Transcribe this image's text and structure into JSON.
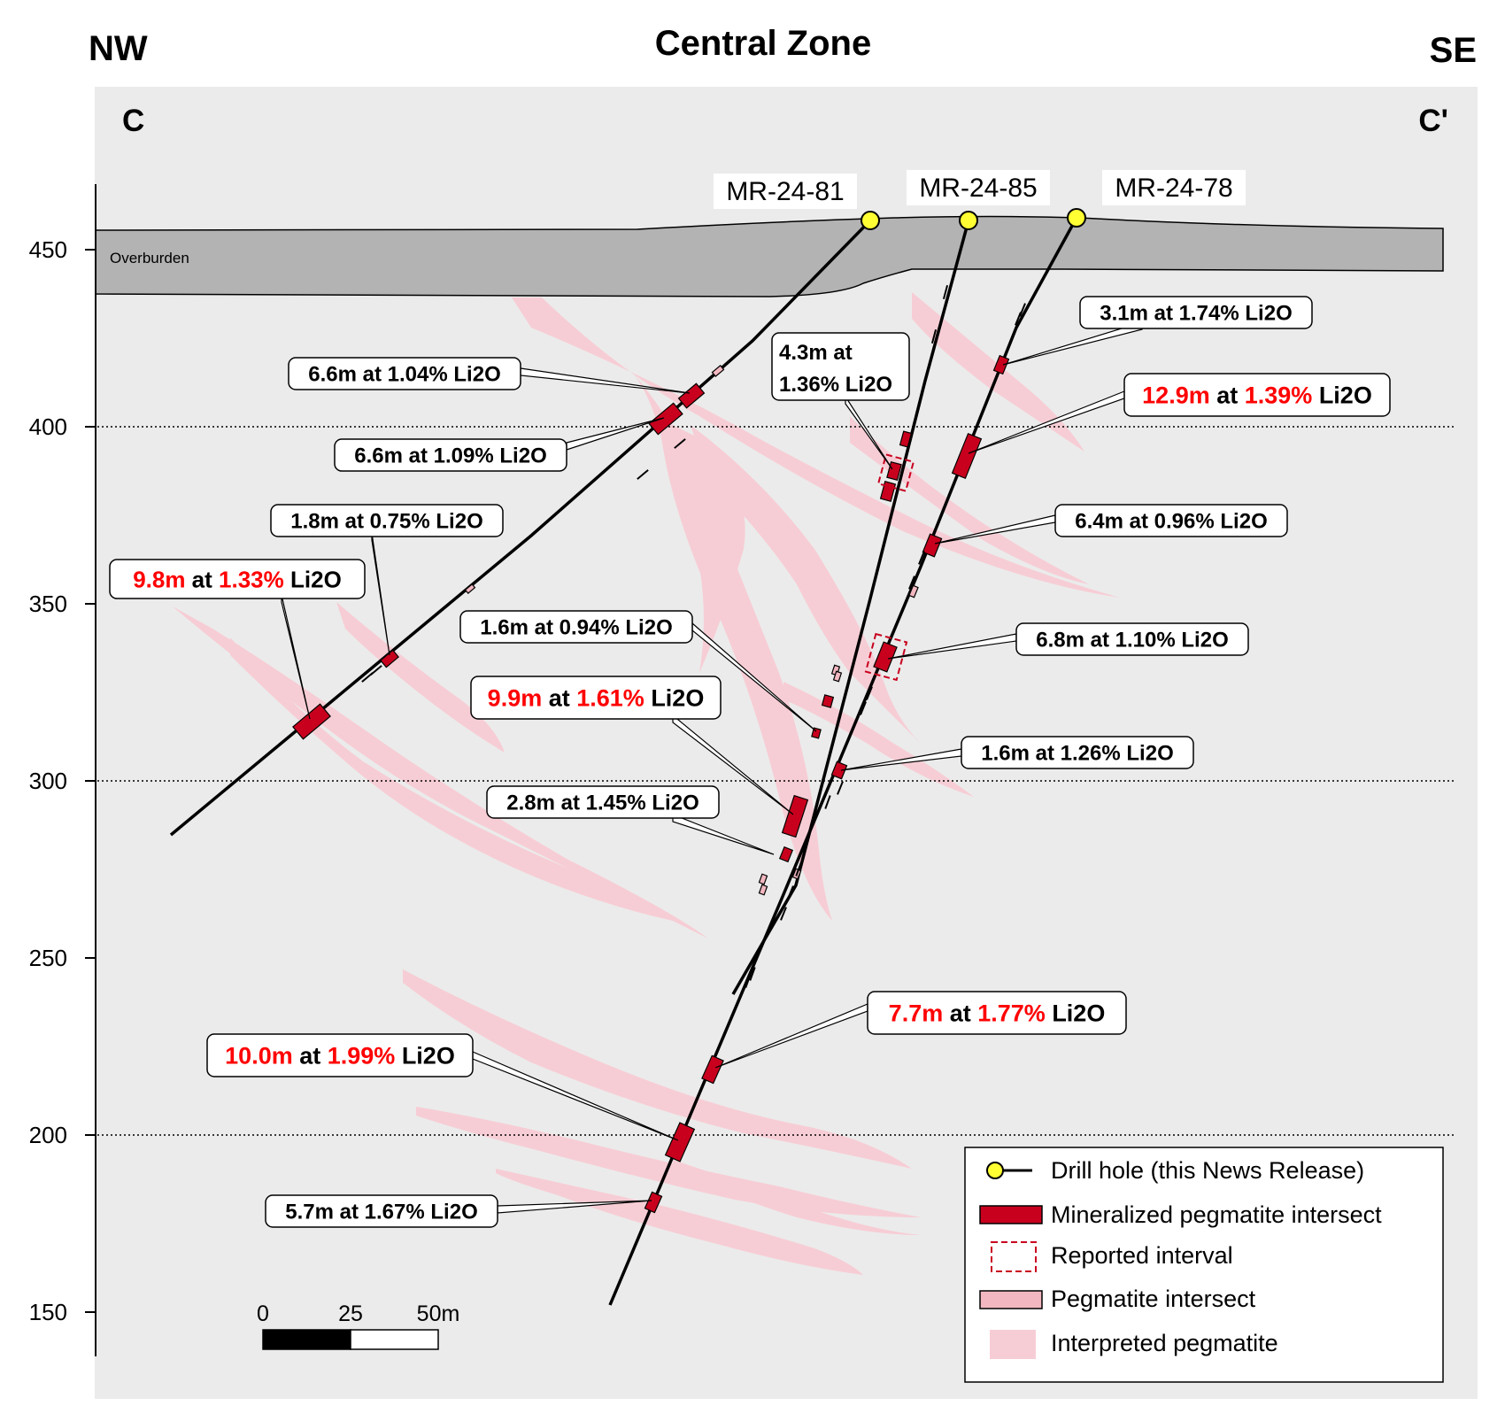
{
  "title": "Central Zone",
  "directions": {
    "left": "NW",
    "right": "SE"
  },
  "section_ends": {
    "left": "C",
    "right": "C'"
  },
  "overburden_label": "Overburden",
  "elevation_axis": {
    "ticks": [
      450,
      400,
      350,
      300,
      250,
      200,
      150
    ],
    "range": [
      135,
      490
    ],
    "gridlines": [
      400,
      300,
      200
    ]
  },
  "drill_holes": [
    {
      "id": "MR-24-81"
    },
    {
      "id": "MR-24-85"
    },
    {
      "id": "MR-24-78"
    }
  ],
  "intercepts": [
    {
      "id": "i1",
      "length": "6.6m",
      "grade": "1.04%",
      "unit": "Li2O",
      "highlight": false,
      "sep": " at "
    },
    {
      "id": "i2",
      "length": "6.6m",
      "grade": "1.09%",
      "unit": "Li2O",
      "highlight": false,
      "sep": " at "
    },
    {
      "id": "i3",
      "length": "1.8m",
      "grade": "0.75%",
      "unit": "Li2O",
      "highlight": false,
      "sep": " at "
    },
    {
      "id": "i4",
      "length": "9.8m",
      "grade": "1.33%",
      "unit": "Li2O",
      "highlight": true,
      "sep": " at "
    },
    {
      "id": "i5",
      "length": "4.3m at",
      "grade": "1.36%",
      "unit": "Li2O",
      "highlight": false,
      "sep": ""
    },
    {
      "id": "i6",
      "length": "3.1m",
      "grade": "1.74%",
      "unit": "Li2O",
      "highlight": false,
      "sep": " at "
    },
    {
      "id": "i7",
      "length": "12.9m",
      "grade": "1.39%",
      "unit": "Li2O",
      "highlight": true,
      "sep": " at "
    },
    {
      "id": "i8",
      "length": "6.4m",
      "grade": "0.96%",
      "unit": "Li2O",
      "highlight": false,
      "sep": " at "
    },
    {
      "id": "i9",
      "length": "1.6m",
      "grade": "0.94%",
      "unit": "Li2O",
      "highlight": false,
      "sep": " at "
    },
    {
      "id": "i10",
      "length": "6.8m",
      "grade": "1.10%",
      "unit": "Li2O",
      "highlight": false,
      "sep": " at "
    },
    {
      "id": "i11",
      "length": "9.9m",
      "grade": "1.61%",
      "unit": "Li2O",
      "highlight": true,
      "sep": " at "
    },
    {
      "id": "i12",
      "length": "1.6m",
      "grade": "1.26%",
      "unit": "Li2O",
      "highlight": false,
      "sep": " at "
    },
    {
      "id": "i13",
      "length": "2.8m",
      "grade": "1.45%",
      "unit": "Li2O",
      "highlight": false,
      "sep": " at "
    },
    {
      "id": "i14",
      "length": "7.7m",
      "grade": "1.77%",
      "unit": "Li2O",
      "highlight": true,
      "sep": " at "
    },
    {
      "id": "i15",
      "length": "10.0m",
      "grade": "1.99%",
      "unit": "Li2O",
      "highlight": true,
      "sep": " at "
    },
    {
      "id": "i16",
      "length": "5.7m",
      "grade": "1.67%",
      "unit": "Li2O",
      "highlight": false,
      "sep": " at "
    }
  ],
  "scale_bar": {
    "labels": [
      "0",
      "25",
      "50m"
    ]
  },
  "legend": [
    {
      "key": "drill-hole",
      "label": "Drill hole (this News Release)"
    },
    {
      "key": "mineralized",
      "label": "Mineralized pegmatite intersect"
    },
    {
      "key": "reported",
      "label": "Reported interval"
    },
    {
      "key": "pegmatite",
      "label": "Pegmatite intersect"
    },
    {
      "key": "interpreted",
      "label": "Interpreted pegmatite"
    }
  ],
  "colors": {
    "panel": "#ebebeb",
    "overburden": "#b3b3b3",
    "mineralized": "#c8001e",
    "pegmatite": "#f2b7c0",
    "interpreted": "#f7cdd5",
    "highlight_text": "#ff0000",
    "collar": "#ffff33"
  }
}
